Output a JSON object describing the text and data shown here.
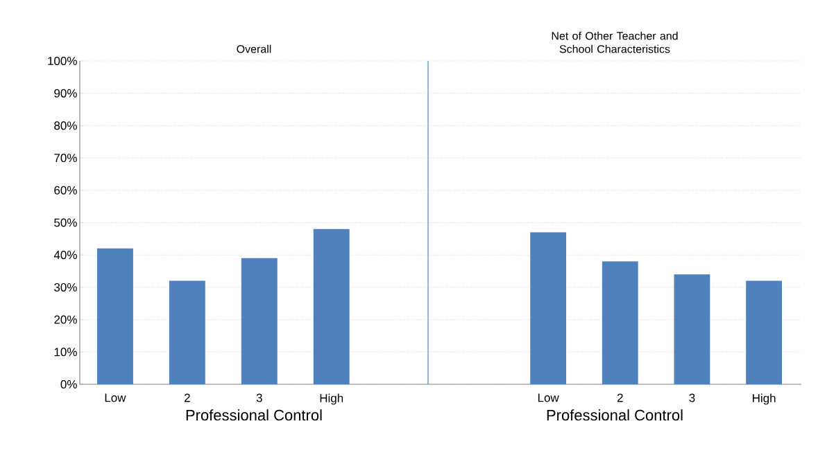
{
  "chart_data": [
    {
      "type": "bar",
      "title": "Overall",
      "xlabel": "Professional Control",
      "categories": [
        "Low",
        "2",
        "3",
        "High"
      ],
      "values": [
        42,
        32,
        39,
        48
      ],
      "color": "#4f81bd",
      "ylim": [
        0,
        100
      ],
      "yticks": [
        {
          "value": 0,
          "label": "0%"
        },
        {
          "value": 10,
          "label": "10%"
        },
        {
          "value": 20,
          "label": "20%"
        },
        {
          "value": 30,
          "label": "30%"
        },
        {
          "value": 40,
          "label": "40%"
        },
        {
          "value": 50,
          "label": "50%"
        },
        {
          "value": 60,
          "label": "60%"
        },
        {
          "value": 70,
          "label": "70%"
        },
        {
          "value": 80,
          "label": "80%"
        },
        {
          "value": 90,
          "label": "90%"
        },
        {
          "value": 100,
          "label": "100%"
        }
      ],
      "grid": "y"
    },
    {
      "type": "bar",
      "title": "Net of Other Teacher and School Characteristics",
      "xlabel": "Professional Control",
      "categories": [
        "Low",
        "2",
        "3",
        "High"
      ],
      "values": [
        47,
        38,
        34,
        32
      ],
      "color": "#4f81bd",
      "ylim": [
        0,
        100
      ],
      "yticks": [
        {
          "value": 0,
          "label": null
        },
        {
          "value": 10,
          "label": null
        },
        {
          "value": 20,
          "label": null
        },
        {
          "value": 30,
          "label": null
        },
        {
          "value": 40,
          "label": null
        },
        {
          "value": 50,
          "label": null
        },
        {
          "value": 60,
          "label": null
        },
        {
          "value": 70,
          "label": null
        },
        {
          "value": 80,
          "label": null
        },
        {
          "value": 90,
          "label": null
        },
        {
          "value": 100,
          "label": null
        }
      ],
      "grid": "y",
      "tick_labels": "x"
    }
  ]
}
